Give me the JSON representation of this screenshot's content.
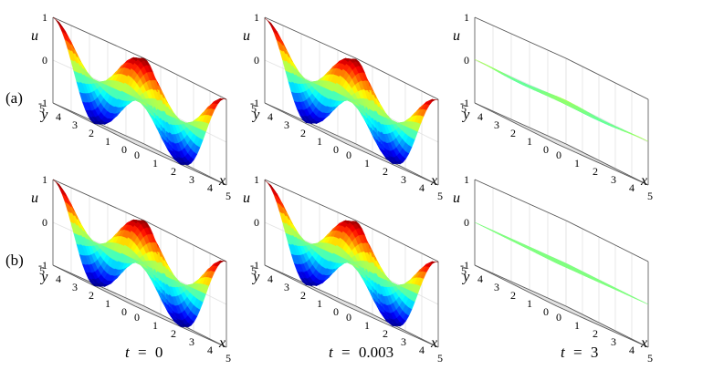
{
  "figure": {
    "row_labels": [
      "(a)",
      "(b)"
    ],
    "time_labels": [
      {
        "var": "t",
        "op": "=",
        "value": "0"
      },
      {
        "var": "t",
        "op": "=",
        "value": "0.003"
      },
      {
        "var": "t",
        "op": "=",
        "value": "3"
      }
    ]
  },
  "chart_data": [
    {
      "type": "surface",
      "row": "(a)",
      "t": "0",
      "function": "u = cos(2πx/5)·cos(2πy/5) (approx.)",
      "amplitude": 1.0,
      "xlabel": "x",
      "ylabel": "y",
      "zlabel": "u",
      "xlim": [
        0,
        5
      ],
      "ylim": [
        0,
        5
      ],
      "zlim": [
        -1,
        1
      ],
      "xticks": [
        "0",
        "1",
        "2",
        "3",
        "4",
        "5"
      ],
      "yticks": [
        "0",
        "1",
        "2",
        "3",
        "4",
        "5"
      ],
      "zticks": [
        "-1",
        "0",
        "1"
      ],
      "colormap": "jet",
      "grid": true
    },
    {
      "type": "surface",
      "row": "(a)",
      "t": "0.003",
      "function": "u = cos(2πx/5)·cos(2πy/5) (approx.)",
      "amplitude": 0.98,
      "xlabel": "x",
      "ylabel": "y",
      "zlabel": "u",
      "xlim": [
        0,
        5
      ],
      "ylim": [
        0,
        5
      ],
      "zlim": [
        -1,
        1
      ],
      "xticks": [
        "0",
        "1",
        "2",
        "3",
        "4",
        "5"
      ],
      "yticks": [
        "0",
        "1",
        "2",
        "3",
        "4",
        "5"
      ],
      "zticks": [
        "-1",
        "0",
        "1"
      ],
      "colormap": "jet",
      "grid": true
    },
    {
      "type": "surface",
      "row": "(a)",
      "t": "3",
      "function": "u ≈ 0 (nearly flat)",
      "amplitude": 0.02,
      "xlabel": "x",
      "ylabel": "y",
      "zlabel": "u",
      "xlim": [
        0,
        5
      ],
      "ylim": [
        0,
        5
      ],
      "zlim": [
        -1,
        1
      ],
      "xticks": [
        "0",
        "1",
        "2",
        "3",
        "4",
        "5"
      ],
      "yticks": [
        "0",
        "1",
        "2",
        "3",
        "4",
        "5"
      ],
      "zticks": [
        "-1",
        "0",
        "1"
      ],
      "colormap": "jet",
      "grid": true
    },
    {
      "type": "surface",
      "row": "(b)",
      "t": "0",
      "function": "u = cos(2πx/5)·cos(2πy/5) (approx.)",
      "amplitude": 1.0,
      "xlabel": "x",
      "ylabel": "y",
      "zlabel": "u",
      "xlim": [
        0,
        5
      ],
      "ylim": [
        0,
        5
      ],
      "zlim": [
        -1,
        1
      ],
      "xticks": [
        "0",
        "1",
        "2",
        "3",
        "4",
        "5"
      ],
      "yticks": [
        "0",
        "1",
        "2",
        "3",
        "4",
        "5"
      ],
      "zticks": [
        "-1",
        "0",
        "1"
      ],
      "colormap": "jet",
      "grid": true
    },
    {
      "type": "surface",
      "row": "(b)",
      "t": "0.003",
      "function": "u = cos(2πx/5)·cos(2πy/5) (approx.)",
      "amplitude": 0.98,
      "xlabel": "x",
      "ylabel": "y",
      "zlabel": "u",
      "xlim": [
        0,
        5
      ],
      "ylim": [
        0,
        5
      ],
      "zlim": [
        -1,
        1
      ],
      "xticks": [
        "0",
        "1",
        "2",
        "3",
        "4",
        "5"
      ],
      "yticks": [
        "0",
        "1",
        "2",
        "3",
        "4",
        "5"
      ],
      "zticks": [
        "-1",
        "0",
        "1"
      ],
      "colormap": "jet",
      "grid": true
    },
    {
      "type": "surface",
      "row": "(b)",
      "t": "3",
      "function": "u ≈ 0 (nearly flat)",
      "amplitude": 0.0,
      "xlabel": "x",
      "ylabel": "y",
      "zlabel": "u",
      "xlim": [
        0,
        5
      ],
      "ylim": [
        0,
        5
      ],
      "zlim": [
        -1,
        1
      ],
      "xticks": [
        "0",
        "1",
        "2",
        "3",
        "4",
        "5"
      ],
      "yticks": [
        "0",
        "1",
        "2",
        "3",
        "4",
        "5"
      ],
      "zticks": [
        "-1",
        "0",
        "1"
      ],
      "colormap": "jet",
      "grid": true
    }
  ]
}
